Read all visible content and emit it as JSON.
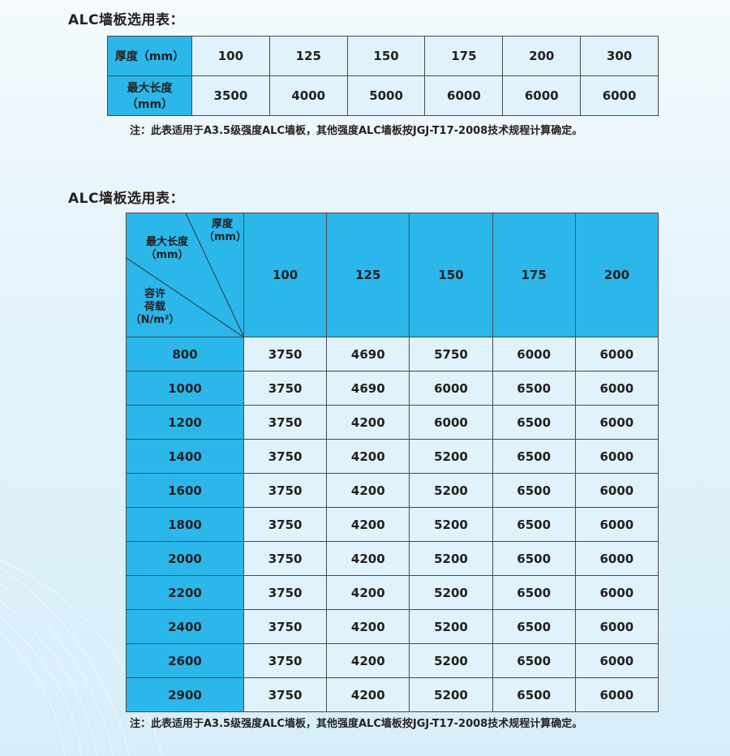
{
  "section1": {
    "title": "ALC墙板选用表：",
    "row_headers": [
      "厚度（mm）",
      "最大长度（mm）"
    ],
    "thickness": [
      "100",
      "125",
      "150",
      "175",
      "200",
      "300"
    ],
    "max_length": [
      "3500",
      "4000",
      "5000",
      "6000",
      "6000",
      "6000"
    ],
    "note": "注：此表适用于A3.5级强度ALC墙板，其他强度ALC墙板按JGJ-T17-2008技术规程计算确定。"
  },
  "section2": {
    "title": "ALC墙板选用表：",
    "corner": {
      "thickness": "厚度",
      "thickness_unit": "（mm）",
      "length": "最大长度",
      "length_unit": "（mm）",
      "load": "容许",
      "load2": "荷载",
      "load_unit": "（N/m²）"
    },
    "thickness": [
      "100",
      "125",
      "150",
      "175",
      "200"
    ],
    "rows": [
      {
        "load": "800",
        "values": [
          "3750",
          "4690",
          "5750",
          "6000",
          "6000"
        ]
      },
      {
        "load": "1000",
        "values": [
          "3750",
          "4690",
          "6000",
          "6500",
          "6000"
        ]
      },
      {
        "load": "1200",
        "values": [
          "3750",
          "4200",
          "6000",
          "6500",
          "6000"
        ]
      },
      {
        "load": "1400",
        "values": [
          "3750",
          "4200",
          "5200",
          "6500",
          "6000"
        ]
      },
      {
        "load": "1600",
        "values": [
          "3750",
          "4200",
          "5200",
          "6500",
          "6000"
        ]
      },
      {
        "load": "1800",
        "values": [
          "3750",
          "4200",
          "5200",
          "6500",
          "6000"
        ]
      },
      {
        "load": "2000",
        "values": [
          "3750",
          "4200",
          "5200",
          "6500",
          "6000"
        ]
      },
      {
        "load": "2200",
        "values": [
          "3750",
          "4200",
          "5200",
          "6500",
          "6000"
        ]
      },
      {
        "load": "2400",
        "values": [
          "3750",
          "4200",
          "5200",
          "6500",
          "6000"
        ]
      },
      {
        "load": "2600",
        "values": [
          "3750",
          "4200",
          "5200",
          "6500",
          "6000"
        ]
      },
      {
        "load": "2900",
        "values": [
          "3750",
          "4200",
          "5200",
          "6500",
          "6000"
        ]
      }
    ],
    "note": "注：此表适用于A3.5级强度ALC墙板，其他强度ALC墙板按JGJ-T17-2008技术规程计算确定。"
  },
  "colors": {
    "header": "#2bb7ea",
    "cell": "#e0f2fb"
  }
}
